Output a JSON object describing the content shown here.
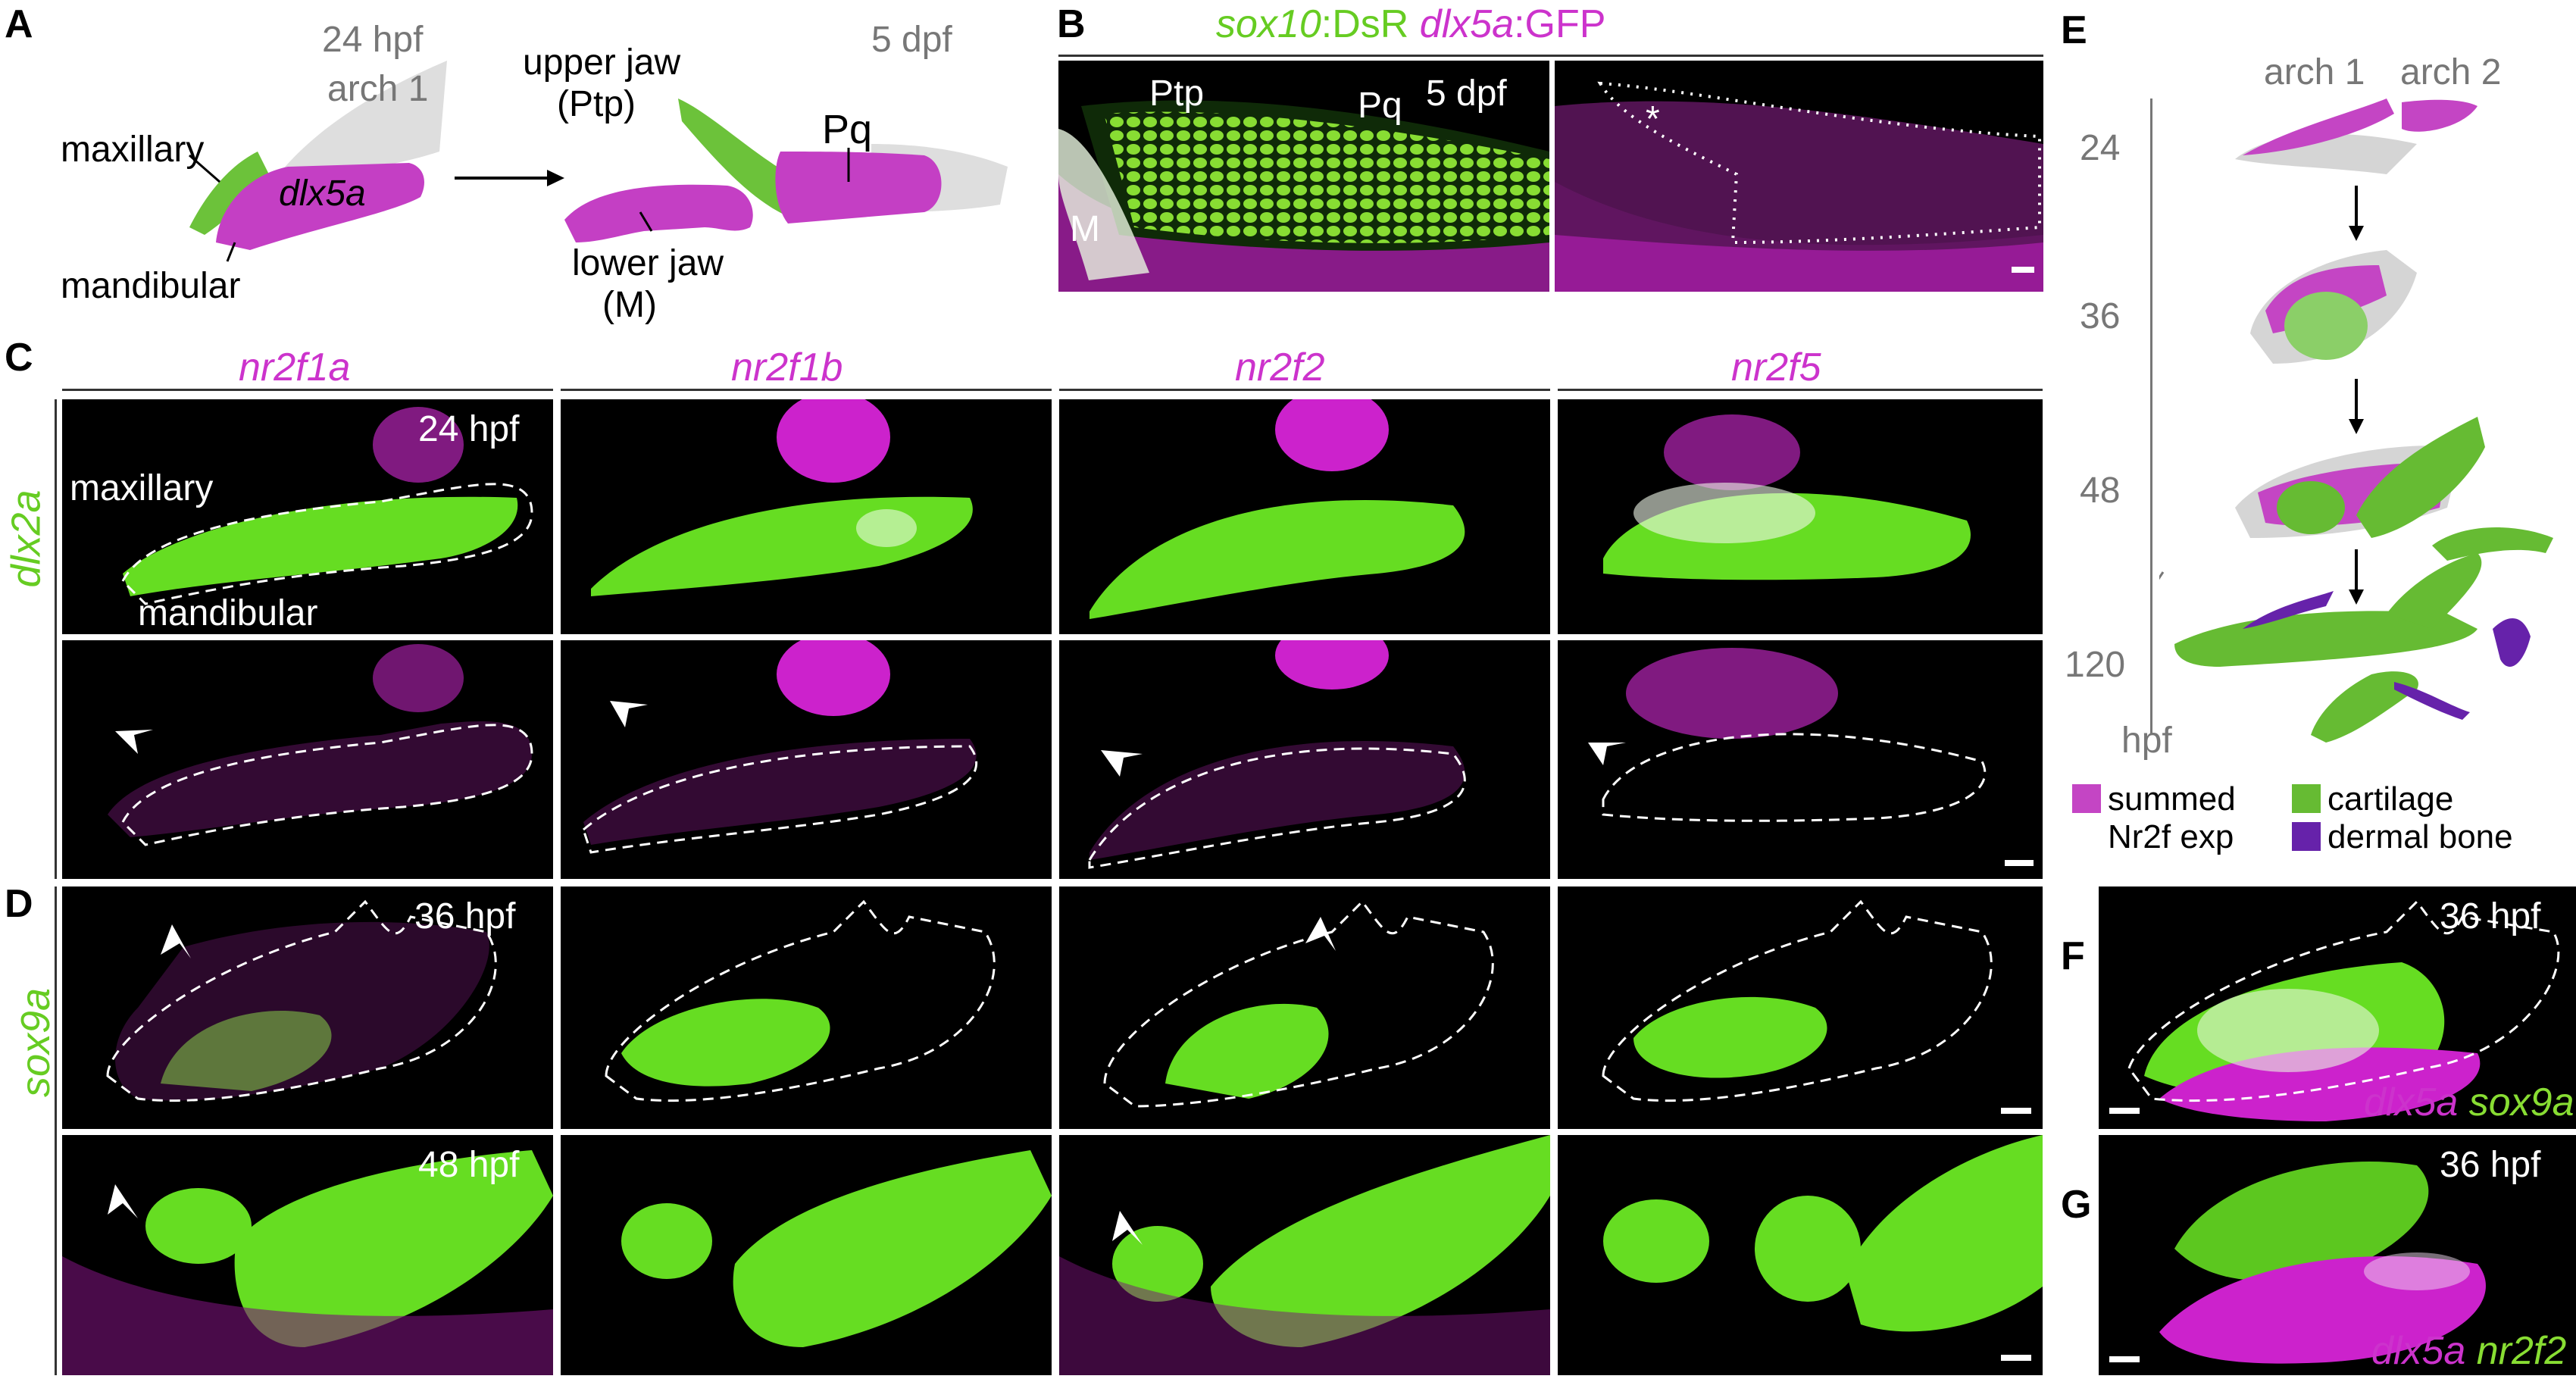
{
  "panel_labels": {
    "A": "A",
    "B": "B",
    "C": "C",
    "D": "D",
    "E": "E",
    "F": "F",
    "G": "G"
  },
  "panelA": {
    "stage_left": "24 hpf",
    "arch_left": "arch 1",
    "stage_right": "5 dpf",
    "maxillary": "maxillary",
    "gene": "dlx5a",
    "mandibular": "mandibular",
    "upper_jaw": "upper jaw",
    "upper_jaw_abbr": "(Ptp)",
    "pq": "Pq",
    "lower_jaw": "lower jaw",
    "lower_jaw_abbr": "(M)"
  },
  "panelB": {
    "gene1": "sox10",
    "reporter1": ":DsR",
    "gene2": "dlx5a",
    "reporter2": ":GFP",
    "ptp": "Ptp",
    "pq": "Pq",
    "m": "M",
    "stage": "5 dpf",
    "star": "*"
  },
  "panelC": {
    "genes": [
      "nr2f1a",
      "nr2f1b",
      "nr2f2",
      "nr2f5"
    ],
    "row_label": "dlx2a",
    "stage": "24 hpf",
    "maxillary": "maxillary",
    "mandibular": "mandibular"
  },
  "panelD": {
    "row_label": "sox9a",
    "stage_top": "36 hpf",
    "stage_bottom": "48 hpf"
  },
  "panelE": {
    "arch1": "arch 1",
    "arch2": "arch 2",
    "times": [
      "24",
      "36",
      "48",
      "120"
    ],
    "unit": "hpf",
    "legend": {
      "magenta_line1": "summed",
      "magenta_line2": "Nr2f exp",
      "green": "cartilage",
      "purple": "dermal bone"
    },
    "colors": {
      "magenta": "#c445c4",
      "green": "#66bb33",
      "purple": "#6622aa",
      "gray": "#d5d5d5"
    }
  },
  "panelF": {
    "stage": "36 hpf",
    "gene1": "dlx5a",
    "gene2": "sox9a"
  },
  "panelG": {
    "stage": "36 hpf",
    "gene1": "dlx5a",
    "gene2": "nr2f2"
  }
}
